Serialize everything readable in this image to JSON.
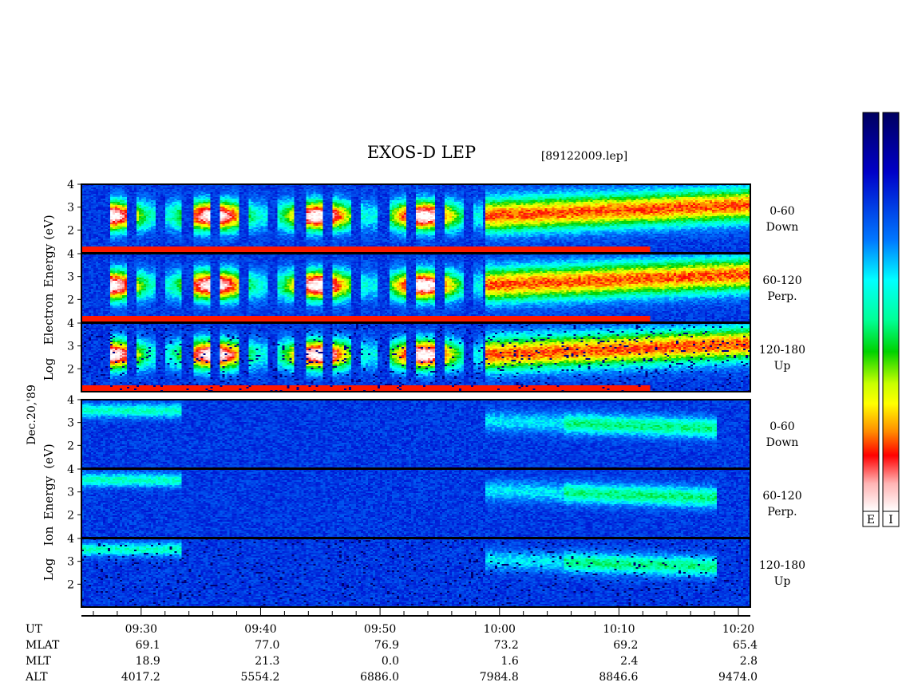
{
  "chart_data": {
    "type": "heatmap",
    "title": "EXOS-D LEP",
    "file_label": "[89122009.lep]",
    "date_label": "Dec.20,'89",
    "x_axis": {
      "ticks": [
        "09:30",
        "09:40",
        "09:50",
        "10:00",
        "10:10",
        "10:20"
      ],
      "range_ut": [
        "09:25",
        "10:21"
      ]
    },
    "colorbar_labels": [
      "E",
      "I"
    ],
    "groups": [
      {
        "name": "electron",
        "ylabel_lines": [
          "Log",
          "Electron",
          "Energy",
          "(eV)"
        ],
        "panels": [
          {
            "angle": "0-60",
            "dir": "Down",
            "yticks": [
              "4",
              "3",
              "2"
            ],
            "ylim": [
              1,
              4
            ]
          },
          {
            "angle": "60-120",
            "dir": "Perp.",
            "yticks": [
              "4",
              "3",
              "2"
            ],
            "ylim": [
              1,
              4
            ]
          },
          {
            "angle": "120-180",
            "dir": "Up",
            "yticks": [
              "4",
              "3",
              "2"
            ],
            "ylim": [
              1,
              4
            ]
          }
        ]
      },
      {
        "name": "ion",
        "ylabel_lines": [
          "Log",
          "Ion",
          "Energy",
          "(eV)"
        ],
        "panels": [
          {
            "angle": "0-60",
            "dir": "Down",
            "yticks": [
              "4",
              "3",
              "2"
            ],
            "ylim": [
              1,
              4
            ]
          },
          {
            "angle": "60-120",
            "dir": "Perp.",
            "yticks": [
              "4",
              "3",
              "2"
            ],
            "ylim": [
              1,
              4
            ]
          },
          {
            "angle": "120-180",
            "dir": "Up",
            "yticks": [
              "4",
              "3",
              "2"
            ],
            "ylim": [
              1,
              4
            ]
          }
        ]
      }
    ],
    "ephemeris": [
      {
        "label": "UT",
        "values": [
          "09:30",
          "09:40",
          "09:50",
          "10:00",
          "10:10",
          "10:20"
        ]
      },
      {
        "label": "MLAT",
        "values": [
          "69.1",
          "77.0",
          "76.9",
          "73.2",
          "69.2",
          "65.4"
        ]
      },
      {
        "label": "MLT",
        "values": [
          "18.9",
          "21.3",
          "0.0",
          "1.6",
          "2.4",
          "2.8"
        ]
      },
      {
        "label": "ALT",
        "values": [
          "4017.2",
          "5554.2",
          "6886.0",
          "7984.8",
          "8846.6",
          "9474.0"
        ]
      }
    ],
    "colors": {
      "colorbar": [
        "#000060",
        "#0000c0",
        "#0050ff",
        "#00c8ff",
        "#00ffc8",
        "#00e000",
        "#a0ff00",
        "#ffff00",
        "#ffa000",
        "#ff4000",
        "#ff0000",
        "#ffb0b0",
        "#ffffff"
      ]
    }
  }
}
